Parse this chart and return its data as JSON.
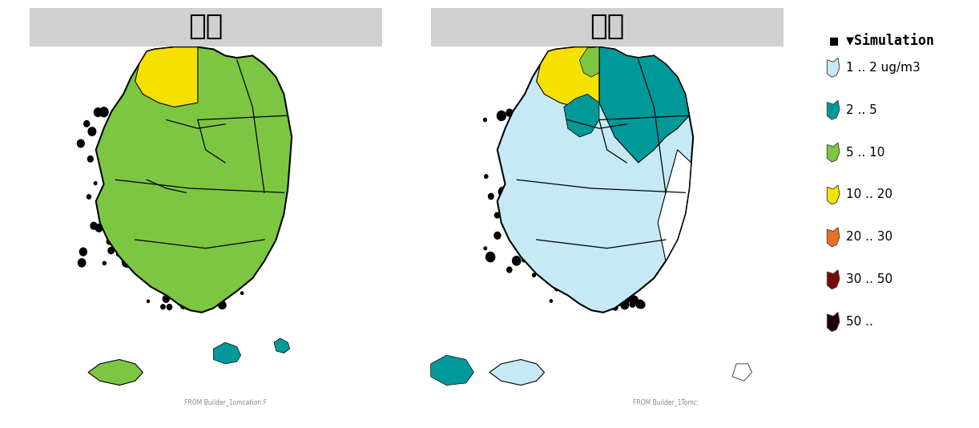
{
  "title_left": "中国",
  "title_right": "북한",
  "figure_bg": "#ffffff",
  "outer_bg": "#f5f5f5",
  "legend_title": "■ ▼Simulation",
  "legend_entries": [
    {
      "label": "1 .. 2 ug/m3",
      "color": "#c5eaf5"
    },
    {
      "label": "2 .. 5",
      "color": "#009999"
    },
    {
      "label": "5 .. 10",
      "color": "#7dc642"
    },
    {
      "label": "10 .. 20",
      "color": "#f5e000"
    },
    {
      "label": "20 .. 30",
      "color": "#e87020"
    },
    {
      "label": "30 .. 50",
      "color": "#7b0a0a"
    },
    {
      "label": "50 ..",
      "color": "#200000"
    }
  ],
  "title_bar_color": "#d0d0d0",
  "title_fontsize": 26,
  "legend_title_fontsize": 12,
  "legend_label_fontsize": 11,
  "watermark_text_left": "FROM Builder_1omcation F",
  "watermark_text_right": "FROM Builder_1Tomc:",
  "watermark_fontsize": 5.5,
  "watermark_color": "#888888",
  "figsize": [
    12.22,
    5.34
  ],
  "dpi": 100
}
